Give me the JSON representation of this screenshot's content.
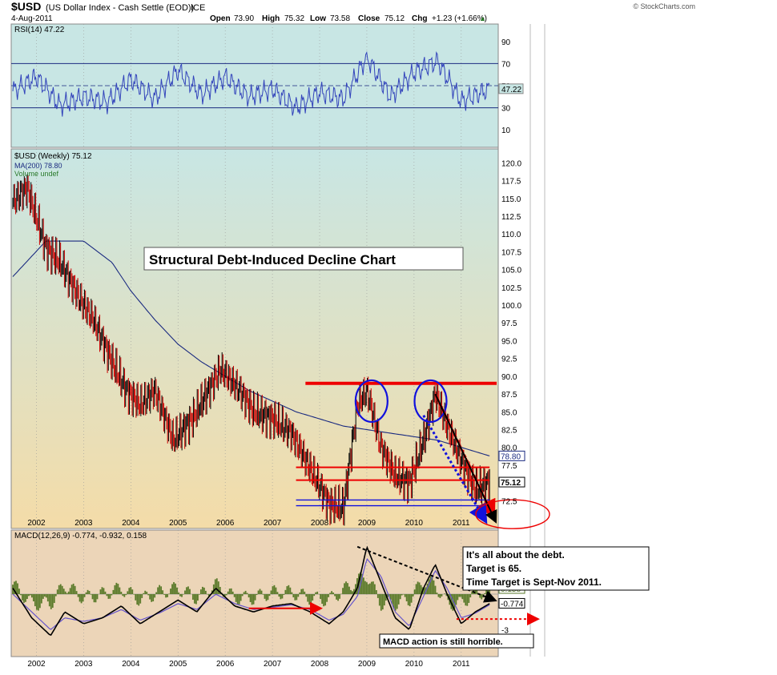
{
  "header": {
    "symbol": "$USD",
    "name": "(US Dollar Index - Cash Settle (EOD))",
    "exchange": "ICE",
    "date": "4-Aug-2011",
    "open_label": "Open",
    "open": "73.90",
    "high_label": "High",
    "high": "75.32",
    "low_label": "Low",
    "low": "73.58",
    "close_label": "Close",
    "close": "75.12",
    "chg_label": "Chg",
    "chg": "+1.23 (+1.66%)",
    "source": "© StockCharts.com"
  },
  "colors": {
    "price_bg_top": "#c8e6e4",
    "price_bg_bottom": "#f4dca8",
    "rsi_bg": "#c8e6e4",
    "macd_bg": "#ecd5b8",
    "up_bar": "#000000",
    "down_bar": "#cc0000",
    "ma_line": "#1a2a80",
    "rsi_line": "#3344bb",
    "macd_line": "#000000",
    "signal_line": "#6655cc",
    "histogram": "#5a7a2a",
    "resistance": "#ee0000",
    "support_blue": "#1111dd",
    "annotation_box": "#ffffff"
  },
  "chart_data": [
    {
      "panel": "rsi",
      "type": "line",
      "legend": "RSI(14) 47.22",
      "last_value": 47.22,
      "ylim": [
        0,
        100
      ],
      "yticks": [
        10,
        30,
        50,
        70,
        90
      ],
      "bands": [
        30,
        70
      ],
      "x": [
        2001.5,
        2002.0,
        2002.5,
        2003.0,
        2003.5,
        2004.0,
        2004.5,
        2005.0,
        2005.5,
        2006.0,
        2006.5,
        2007.0,
        2007.5,
        2008.0,
        2008.5,
        2009.0,
        2009.5,
        2010.0,
        2010.5,
        2011.0,
        2011.6
      ],
      "values": [
        45,
        58,
        32,
        40,
        35,
        56,
        38,
        64,
        42,
        58,
        40,
        47,
        30,
        44,
        38,
        76,
        40,
        62,
        72,
        36,
        47
      ]
    },
    {
      "panel": "price",
      "type": "candlestick",
      "legend": [
        "$USD (Weekly) 75.12",
        "MA(200) 78.80",
        "Volume undef"
      ],
      "last_value": 75.12,
      "ma_last": 78.8,
      "ylim": [
        69.5,
        121.5
      ],
      "yticks": [
        72.5,
        75.0,
        77.5,
        80.0,
        82.5,
        85.0,
        87.5,
        90.0,
        92.5,
        95.0,
        97.5,
        100.0,
        102.5,
        105.0,
        107.5,
        110.0,
        112.5,
        115.0,
        117.5,
        120.0
      ],
      "xticks": [
        "2002",
        "2003",
        "2004",
        "2005",
        "2006",
        "2007",
        "2008",
        "2009",
        "2010",
        "2011"
      ],
      "close_path": {
        "x": [
          2001.5,
          2001.8,
          2002.2,
          2002.5,
          2002.9,
          2003.2,
          2003.6,
          2003.9,
          2004.2,
          2004.5,
          2004.9,
          2005.3,
          2005.9,
          2006.3,
          2006.6,
          2007.0,
          2007.4,
          2007.8,
          2008.2,
          2008.5,
          2008.8,
          2009.0,
          2009.3,
          2009.6,
          2009.9,
          2010.2,
          2010.45,
          2010.7,
          2011.0,
          2011.3,
          2011.6
        ],
        "values": [
          114.5,
          116.5,
          108,
          106,
          101,
          98,
          92,
          88,
          86,
          88,
          81,
          84,
          91,
          88,
          85,
          84,
          82,
          77,
          72,
          71.5,
          86,
          88,
          80,
          76,
          75,
          81,
          87.5,
          83,
          78,
          74,
          75.1
        ]
      },
      "ma200": {
        "x": [
          2001.5,
          2002.2,
          2003.0,
          2003.6,
          2004.0,
          2004.5,
          2005.0,
          2005.5,
          2006.0,
          2006.5,
          2007.0,
          2007.5,
          2008.0,
          2008.5,
          2009.0,
          2009.5,
          2010.0,
          2010.5,
          2011.0,
          2011.6
        ],
        "values": [
          104,
          109,
          109,
          106,
          102,
          98,
          94.5,
          92,
          90,
          88,
          86.5,
          85,
          84,
          83,
          82.5,
          82,
          81.5,
          81,
          80,
          78.8
        ]
      },
      "resistance_lines": [
        {
          "value": 89.0,
          "color": "#ee0000",
          "from": 2007.7,
          "to": 2011.75
        },
        {
          "value": 77.2,
          "color": "#ee0000",
          "from": 2007.5,
          "to": 2011.6
        },
        {
          "value": 75.4,
          "color": "#ee0000",
          "from": 2007.5,
          "to": 2011.6
        }
      ],
      "support_lines": [
        {
          "value": 72.6,
          "color": "#1111dd",
          "from": 2007.5,
          "to": 2011.6
        },
        {
          "value": 71.8,
          "color": "#1111dd",
          "from": 2007.5,
          "to": 2011.6
        }
      ],
      "peaks_circled": [
        {
          "x": 2009.1,
          "y": 86.5
        },
        {
          "x": 2010.35,
          "y": 86.5
        }
      ],
      "title_box": "Structural Debt-Induced Decline Chart",
      "annotation": [
        "It's all about the debt.",
        "Target is 65.",
        "Time Target is Sept-Nov 2011."
      ]
    },
    {
      "panel": "macd",
      "type": "line",
      "legend": "MACD(12,26,9) -0.774, -0.932, 0.158",
      "macd_last": -0.774,
      "signal_last": -0.932,
      "histogram_last": 0.158,
      "ytick": -3,
      "x": [
        2001.5,
        2001.9,
        2002.3,
        2002.6,
        2003.0,
        2003.4,
        2003.8,
        2004.2,
        2004.6,
        2005.0,
        2005.4,
        2005.8,
        2006.2,
        2006.6,
        2007.0,
        2007.4,
        2007.8,
        2008.2,
        2008.5,
        2008.8,
        2009.0,
        2009.3,
        2009.6,
        2009.9,
        2010.2,
        2010.45,
        2010.7,
        2011.0,
        2011.3,
        2011.6
      ],
      "macd": [
        0.5,
        -2.0,
        -3.5,
        -1.5,
        -2.5,
        -2.0,
        -1.0,
        -2.5,
        -1.5,
        -0.5,
        -1.5,
        0.5,
        -1.0,
        -1.5,
        -1.0,
        -0.8,
        -1.5,
        -2.5,
        -1.5,
        0.5,
        4.0,
        1.0,
        -2.0,
        -3.0,
        0.5,
        2.5,
        0.0,
        -2.5,
        -1.5,
        -0.8
      ],
      "signal": [
        0.0,
        -1.5,
        -3.0,
        -2.0,
        -2.3,
        -2.0,
        -1.3,
        -2.2,
        -1.6,
        -0.8,
        -1.3,
        0.0,
        -0.8,
        -1.3,
        -1.1,
        -0.9,
        -1.3,
        -2.2,
        -1.7,
        -0.2,
        3.0,
        1.5,
        -1.5,
        -2.7,
        -0.2,
        2.0,
        0.5,
        -2.0,
        -1.6,
        -0.9
      ],
      "annotation": "MACD action is still  horrible."
    }
  ]
}
